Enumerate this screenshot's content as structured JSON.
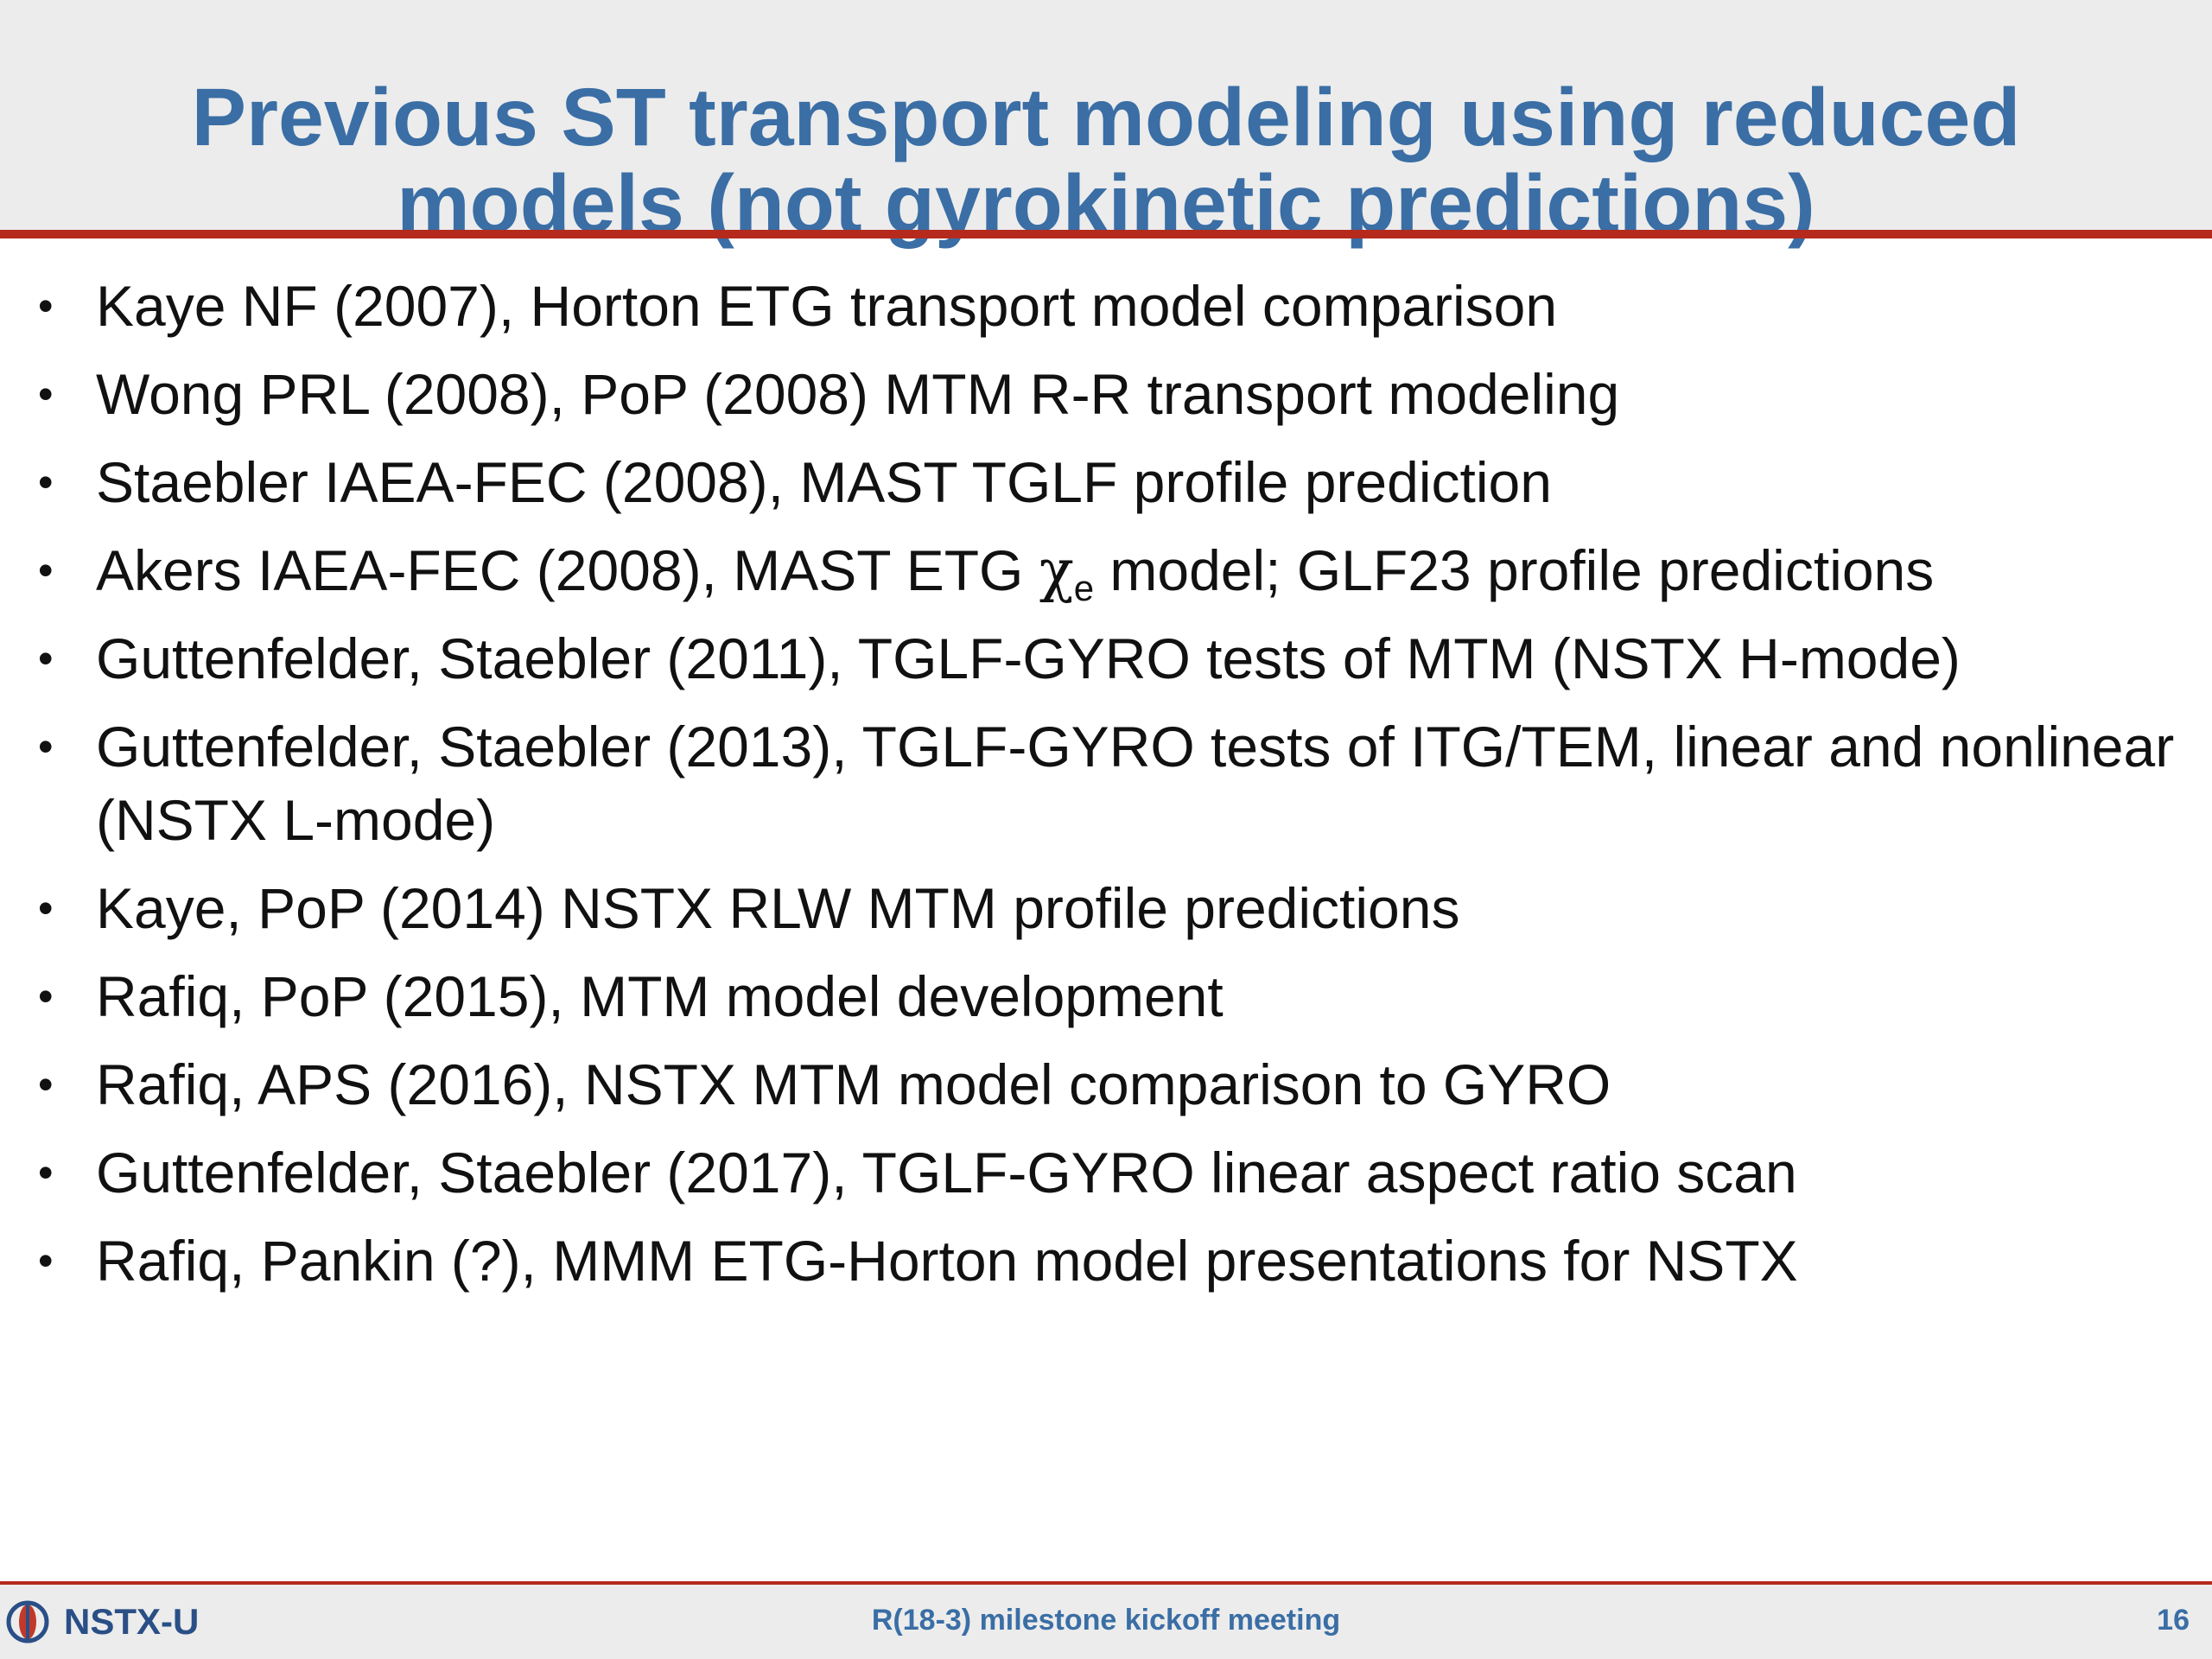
{
  "title": {
    "line1": "Previous ST transport modeling using reduced",
    "line2": "models (not gyrokinetic predictions)"
  },
  "bullet_glyph": "•",
  "bullets": [
    {
      "text": "Kaye NF (2007), Horton ETG transport model comparison"
    },
    {
      "text": "Wong PRL (2008), PoP (2008) MTM R-R transport modeling"
    },
    {
      "text": "Staebler IAEA-FEC (2008), MAST TGLF profile prediction"
    },
    {
      "pre": "Akers IAEA-FEC (2008), MAST ETG ",
      "symbol": "χ",
      "subscript": "e",
      "post": " model; GLF23 profile predictions"
    },
    {
      "text": "Guttenfelder, Staebler (2011), TGLF-GYRO tests of MTM (NSTX H-mode)"
    },
    {
      "text": "Guttenfelder, Staebler (2013), TGLF-GYRO tests of ITG/TEM, linear and nonlinear (NSTX L-mode)"
    },
    {
      "text": "Kaye, PoP (2014) NSTX RLW MTM profile predictions"
    },
    {
      "text": "Rafiq, PoP (2015), MTM model development"
    },
    {
      "text": "Rafiq, APS (2016), NSTX MTM model comparison to GYRO"
    },
    {
      "text": "Guttenfelder, Staebler (2017), TGLF-GYRO linear aspect ratio scan"
    },
    {
      "text": "Rafiq, Pankin (?), MMM ETG-Horton model presentations for NSTX"
    }
  ],
  "footer": {
    "logo_text": "NSTX-U",
    "logo_icon": "nstx-u-logo-icon",
    "meeting": "R(18-3) milestone kickoff meeting",
    "page_number": "16"
  },
  "colors": {
    "title": "#3a6ea5",
    "rule": "#b52a1c",
    "band": "#ececec"
  }
}
